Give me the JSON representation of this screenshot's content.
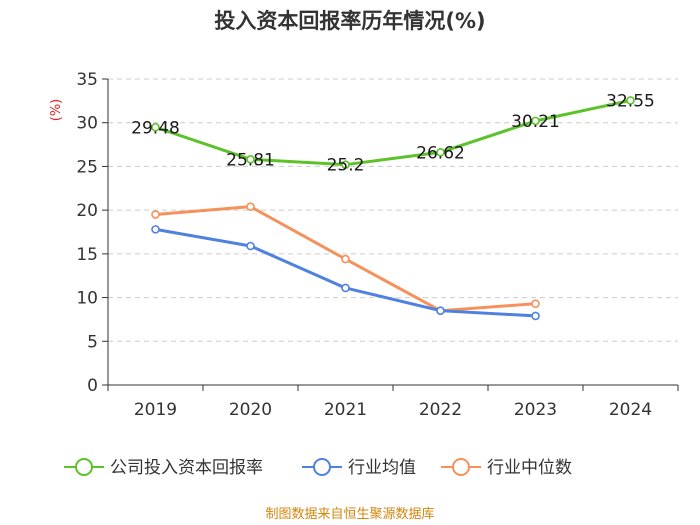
{
  "chart_data": {
    "type": "line",
    "title": "投入资本回报率历年情况(%)",
    "ylabel": "(%)",
    "ylim": [
      0,
      35
    ],
    "yticks": [
      0,
      5,
      10,
      15,
      20,
      25,
      30,
      35
    ],
    "grid": true,
    "categories": [
      "2019",
      "2020",
      "2021",
      "2022",
      "2023",
      "2024"
    ],
    "series": [
      {
        "name": "公司投入资本回报率",
        "color": "#5cc22a",
        "values": [
          29.48,
          25.81,
          25.2,
          26.62,
          30.21,
          32.55
        ],
        "labels": true
      },
      {
        "name": "行业均值",
        "color": "#4f81e0",
        "values": [
          17.8,
          15.9,
          11.1,
          8.5,
          7.9,
          null
        ],
        "labels": false
      },
      {
        "name": "行业中位数",
        "color": "#f5915a",
        "values": [
          19.5,
          20.4,
          14.4,
          8.5,
          9.3,
          null
        ],
        "labels": false
      }
    ],
    "legend_position": "bottom",
    "source": "制图数据来自恒生聚源数据库",
    "colors": {
      "axis": "#333333",
      "grid": "#cccccc",
      "unit": "#e02020",
      "source": "#d4860b"
    }
  }
}
